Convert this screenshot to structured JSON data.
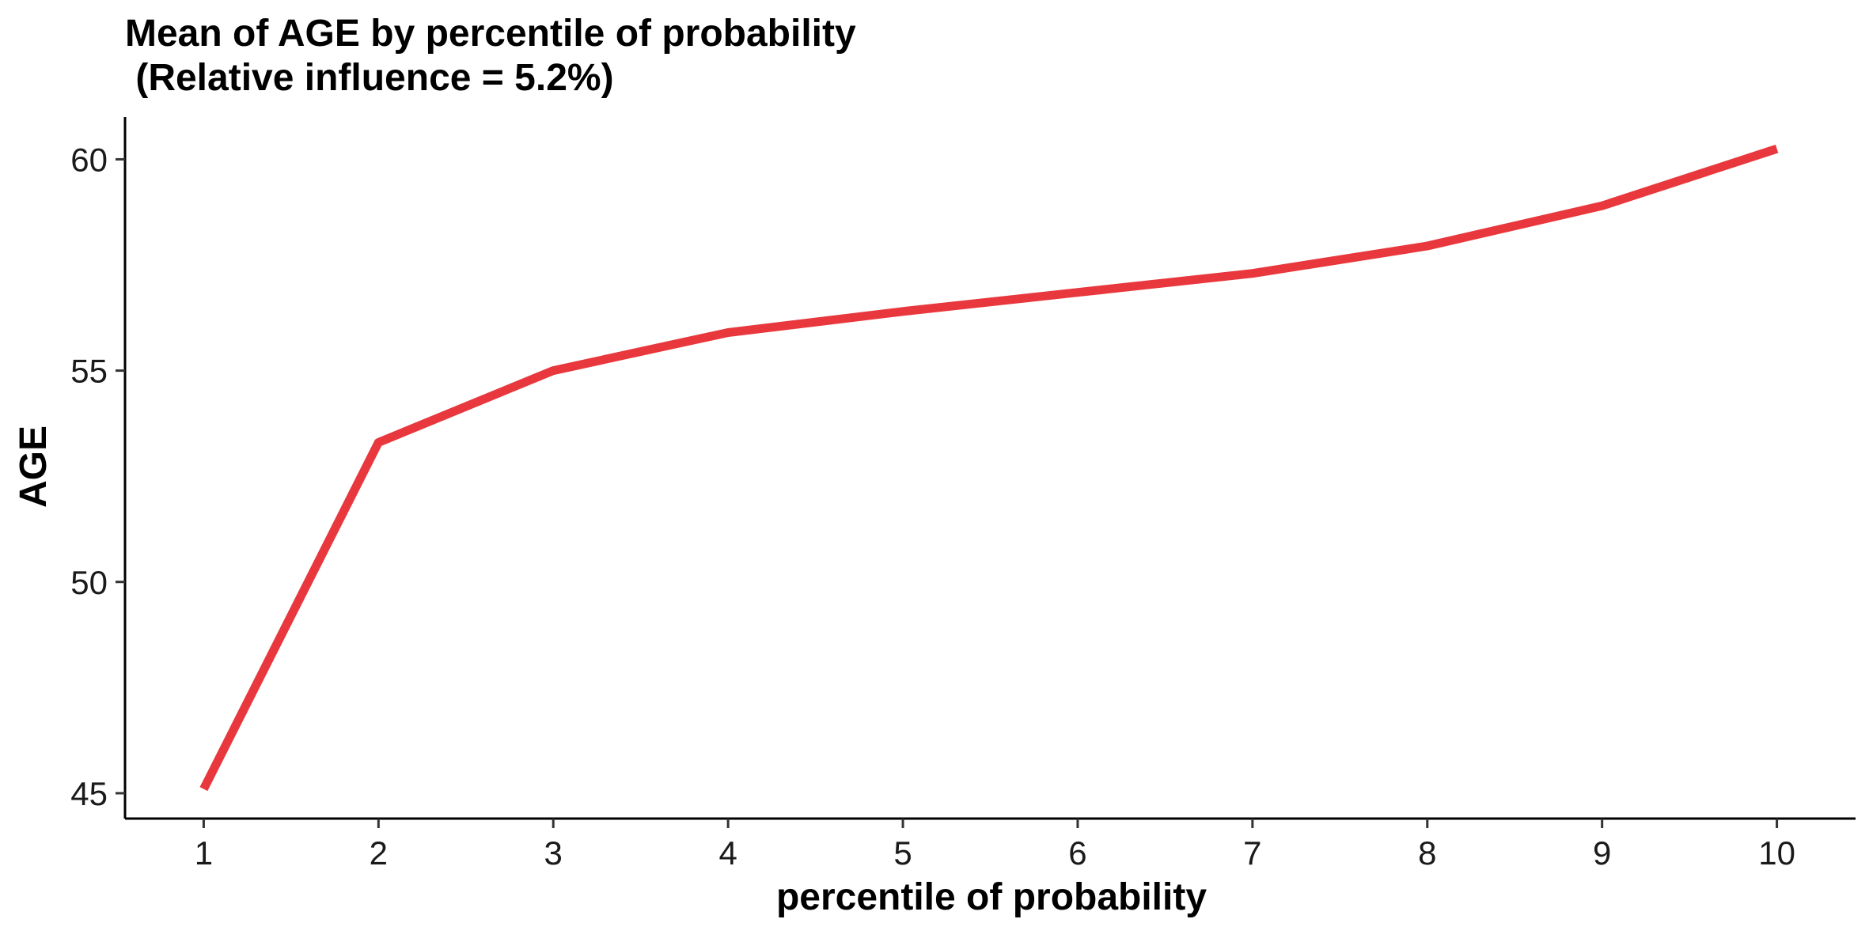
{
  "chart_data": {
    "type": "line",
    "title_line1": "Mean of AGE by percentile of probability",
    "title_line2": " (Relative influence = 5.2%)",
    "xlabel": "percentile of probability",
    "ylabel": "AGE",
    "x": [
      1,
      2,
      3,
      4,
      5,
      6,
      7,
      8,
      9,
      10
    ],
    "series": [
      {
        "values": [
          45.1,
          53.3,
          55.0,
          55.9,
          56.4,
          56.85,
          57.3,
          57.95,
          58.9,
          60.25
        ],
        "color": "#e8383d"
      }
    ],
    "xlim": [
      0.55,
      10.45
    ],
    "ylim": [
      44.4,
      61.0
    ],
    "xticks": [
      1,
      2,
      3,
      4,
      5,
      6,
      7,
      8,
      9,
      10
    ],
    "yticks": [
      45,
      50,
      55,
      60
    ],
    "grid": false,
    "legend": "none"
  }
}
